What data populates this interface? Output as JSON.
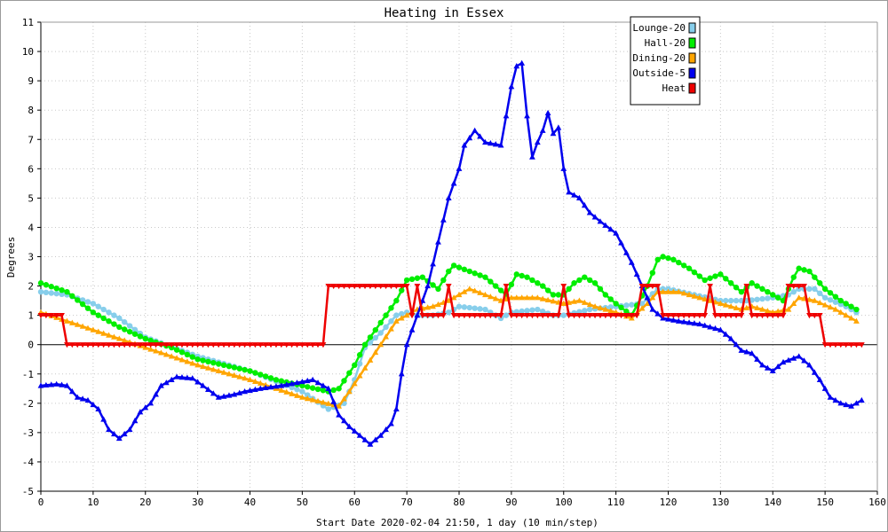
{
  "chart_data": {
    "type": "line",
    "title": "Heating in Essex",
    "xlabel": "Start Date 2020-02-04 21:50, 1 day (10 min/step)",
    "ylabel": "Degrees",
    "xlim": [
      0,
      160
    ],
    "ylim": [
      -5,
      11
    ],
    "x_ticks": [
      0,
      10,
      20,
      30,
      40,
      50,
      60,
      70,
      80,
      90,
      100,
      110,
      120,
      130,
      140,
      150,
      160
    ],
    "y_ticks": [
      -5,
      -4,
      -3,
      -2,
      -1,
      0,
      1,
      2,
      3,
      4,
      5,
      6,
      7,
      8,
      9,
      10,
      11
    ],
    "grid": true,
    "legend_position": "top-right",
    "series": [
      {
        "name": "Lounge-20",
        "color": "#87ceeb",
        "marker": "circle",
        "points": [
          [
            0,
            1.8
          ],
          [
            5,
            1.7
          ],
          [
            10,
            1.4
          ],
          [
            15,
            0.9
          ],
          [
            20,
            0.25
          ],
          [
            30,
            -0.4
          ],
          [
            40,
            -0.9
          ],
          [
            50,
            -1.6
          ],
          [
            55,
            -2.2
          ],
          [
            58,
            -2.0
          ],
          [
            60,
            -1.2
          ],
          [
            62,
            -0.1
          ],
          [
            65,
            0.4
          ],
          [
            68,
            1.0
          ],
          [
            70,
            1.1
          ],
          [
            72,
            1.0
          ],
          [
            75,
            1.0
          ],
          [
            78,
            1.1
          ],
          [
            80,
            1.3
          ],
          [
            85,
            1.2
          ],
          [
            88,
            0.9
          ],
          [
            90,
            1.1
          ],
          [
            95,
            1.2
          ],
          [
            98,
            1.0
          ],
          [
            100,
            1.0
          ],
          [
            105,
            1.2
          ],
          [
            110,
            1.3
          ],
          [
            115,
            1.4
          ],
          [
            118,
            1.9
          ],
          [
            120,
            1.9
          ],
          [
            125,
            1.7
          ],
          [
            130,
            1.5
          ],
          [
            135,
            1.5
          ],
          [
            140,
            1.6
          ],
          [
            143,
            1.7
          ],
          [
            145,
            1.9
          ],
          [
            148,
            1.9
          ],
          [
            150,
            1.6
          ],
          [
            154,
            1.3
          ],
          [
            156,
            1.1
          ]
        ]
      },
      {
        "name": "Hall-20",
        "color": "#00ee00",
        "marker": "circle",
        "points": [
          [
            0,
            2.1
          ],
          [
            5,
            1.8
          ],
          [
            10,
            1.1
          ],
          [
            15,
            0.6
          ],
          [
            20,
            0.2
          ],
          [
            25,
            -0.1
          ],
          [
            30,
            -0.5
          ],
          [
            35,
            -0.7
          ],
          [
            40,
            -0.9
          ],
          [
            45,
            -1.2
          ],
          [
            50,
            -1.4
          ],
          [
            55,
            -1.6
          ],
          [
            57,
            -1.5
          ],
          [
            60,
            -0.7
          ],
          [
            62,
            0.0
          ],
          [
            64,
            0.5
          ],
          [
            66,
            1.0
          ],
          [
            68,
            1.5
          ],
          [
            70,
            2.2
          ],
          [
            73,
            2.3
          ],
          [
            76,
            1.9
          ],
          [
            78,
            2.5
          ],
          [
            79,
            2.7
          ],
          [
            82,
            2.5
          ],
          [
            85,
            2.3
          ],
          [
            87,
            2.0
          ],
          [
            89,
            1.7
          ],
          [
            91,
            2.4
          ],
          [
            93,
            2.3
          ],
          [
            96,
            2.0
          ],
          [
            98,
            1.7
          ],
          [
            100,
            1.7
          ],
          [
            102,
            2.1
          ],
          [
            104,
            2.3
          ],
          [
            106,
            2.1
          ],
          [
            108,
            1.7
          ],
          [
            110,
            1.4
          ],
          [
            113,
            1.0
          ],
          [
            116,
            2.0
          ],
          [
            118,
            2.9
          ],
          [
            119,
            3.0
          ],
          [
            121,
            2.9
          ],
          [
            124,
            2.6
          ],
          [
            127,
            2.2
          ],
          [
            130,
            2.4
          ],
          [
            132,
            2.1
          ],
          [
            134,
            1.8
          ],
          [
            136,
            2.1
          ],
          [
            138,
            1.9
          ],
          [
            140,
            1.7
          ],
          [
            142,
            1.5
          ],
          [
            144,
            2.3
          ],
          [
            145,
            2.6
          ],
          [
            147,
            2.5
          ],
          [
            150,
            1.9
          ],
          [
            153,
            1.5
          ],
          [
            156,
            1.2
          ]
        ]
      },
      {
        "name": "Dining-20",
        "color": "#ffa500",
        "marker": "triangle",
        "points": [
          [
            0,
            1.1
          ],
          [
            5,
            0.8
          ],
          [
            10,
            0.5
          ],
          [
            15,
            0.2
          ],
          [
            20,
            -0.1
          ],
          [
            30,
            -0.7
          ],
          [
            40,
            -1.2
          ],
          [
            50,
            -1.8
          ],
          [
            57,
            -2.1
          ],
          [
            59,
            -1.6
          ],
          [
            62,
            -0.8
          ],
          [
            65,
            0.0
          ],
          [
            68,
            0.8
          ],
          [
            72,
            1.2
          ],
          [
            75,
            1.3
          ],
          [
            78,
            1.5
          ],
          [
            82,
            1.9
          ],
          [
            85,
            1.7
          ],
          [
            88,
            1.5
          ],
          [
            90,
            1.6
          ],
          [
            95,
            1.6
          ],
          [
            100,
            1.4
          ],
          [
            103,
            1.5
          ],
          [
            106,
            1.3
          ],
          [
            110,
            1.1
          ],
          [
            113,
            0.9
          ],
          [
            116,
            1.4
          ],
          [
            118,
            1.8
          ],
          [
            122,
            1.8
          ],
          [
            126,
            1.6
          ],
          [
            130,
            1.4
          ],
          [
            134,
            1.2
          ],
          [
            136,
            1.3
          ],
          [
            140,
            1.1
          ],
          [
            143,
            1.2
          ],
          [
            145,
            1.6
          ],
          [
            148,
            1.5
          ],
          [
            152,
            1.2
          ],
          [
            156,
            0.8
          ]
        ]
      },
      {
        "name": "Outside-5",
        "color": "#0000ee",
        "marker": "triangle",
        "points": [
          [
            0,
            -1.4
          ],
          [
            3,
            -1.35
          ],
          [
            5,
            -1.4
          ],
          [
            7,
            -1.8
          ],
          [
            9,
            -1.9
          ],
          [
            11,
            -2.2
          ],
          [
            13,
            -2.9
          ],
          [
            15,
            -3.2
          ],
          [
            17,
            -2.9
          ],
          [
            19,
            -2.3
          ],
          [
            21,
            -2.0
          ],
          [
            23,
            -1.4
          ],
          [
            26,
            -1.1
          ],
          [
            29,
            -1.15
          ],
          [
            31,
            -1.4
          ],
          [
            34,
            -1.8
          ],
          [
            37,
            -1.7
          ],
          [
            39,
            -1.6
          ],
          [
            42,
            -1.5
          ],
          [
            46,
            -1.4
          ],
          [
            49,
            -1.3
          ],
          [
            52,
            -1.2
          ],
          [
            55,
            -1.5
          ],
          [
            57,
            -2.4
          ],
          [
            59,
            -2.8
          ],
          [
            61,
            -3.1
          ],
          [
            63,
            -3.4
          ],
          [
            65,
            -3.1
          ],
          [
            67,
            -2.7
          ],
          [
            68,
            -2.2
          ],
          [
            69,
            -1.0
          ],
          [
            70,
            0.0
          ],
          [
            72,
            1.0
          ],
          [
            74,
            2.0
          ],
          [
            76,
            3.5
          ],
          [
            78,
            5.0
          ],
          [
            80,
            6.0
          ],
          [
            81,
            6.8
          ],
          [
            83,
            7.3
          ],
          [
            85,
            6.9
          ],
          [
            88,
            6.8
          ],
          [
            90,
            8.8
          ],
          [
            91,
            9.5
          ],
          [
            92,
            9.6
          ],
          [
            93,
            7.8
          ],
          [
            94,
            6.4
          ],
          [
            95,
            6.9
          ],
          [
            96,
            7.3
          ],
          [
            97,
            7.9
          ],
          [
            98,
            7.2
          ],
          [
            99,
            7.4
          ],
          [
            100,
            6.0
          ],
          [
            101,
            5.2
          ],
          [
            103,
            5.0
          ],
          [
            105,
            4.5
          ],
          [
            107,
            4.2
          ],
          [
            110,
            3.8
          ],
          [
            113,
            2.8
          ],
          [
            115,
            2.0
          ],
          [
            117,
            1.2
          ],
          [
            119,
            0.9
          ],
          [
            122,
            0.8
          ],
          [
            126,
            0.7
          ],
          [
            128,
            0.6
          ],
          [
            130,
            0.5
          ],
          [
            132,
            0.2
          ],
          [
            134,
            -0.2
          ],
          [
            136,
            -0.3
          ],
          [
            138,
            -0.7
          ],
          [
            140,
            -0.9
          ],
          [
            142,
            -0.6
          ],
          [
            145,
            -0.4
          ],
          [
            147,
            -0.7
          ],
          [
            149,
            -1.2
          ],
          [
            151,
            -1.8
          ],
          [
            153,
            -2.0
          ],
          [
            155,
            -2.1
          ],
          [
            157,
            -1.9
          ]
        ]
      },
      {
        "name": "Heat",
        "color": "#ee0000",
        "marker": "triangle-down",
        "points": [
          [
            0,
            1
          ],
          [
            4,
            1
          ],
          [
            5,
            0
          ],
          [
            54,
            0
          ],
          [
            55,
            2
          ],
          [
            70,
            2
          ],
          [
            71,
            1
          ],
          [
            72,
            2
          ],
          [
            73,
            1
          ],
          [
            77,
            1
          ],
          [
            78,
            2
          ],
          [
            79,
            1
          ],
          [
            88,
            1
          ],
          [
            89,
            2
          ],
          [
            90,
            1
          ],
          [
            99,
            1
          ],
          [
            100,
            2
          ],
          [
            101,
            1
          ],
          [
            114,
            1
          ],
          [
            115,
            2
          ],
          [
            118,
            2
          ],
          [
            119,
            1
          ],
          [
            127,
            1
          ],
          [
            128,
            2
          ],
          [
            129,
            1
          ],
          [
            134,
            1
          ],
          [
            135,
            2
          ],
          [
            136,
            1
          ],
          [
            142,
            1
          ],
          [
            143,
            2
          ],
          [
            146,
            2
          ],
          [
            147,
            1
          ],
          [
            149,
            1
          ],
          [
            150,
            0
          ],
          [
            157,
            0
          ]
        ]
      }
    ]
  }
}
